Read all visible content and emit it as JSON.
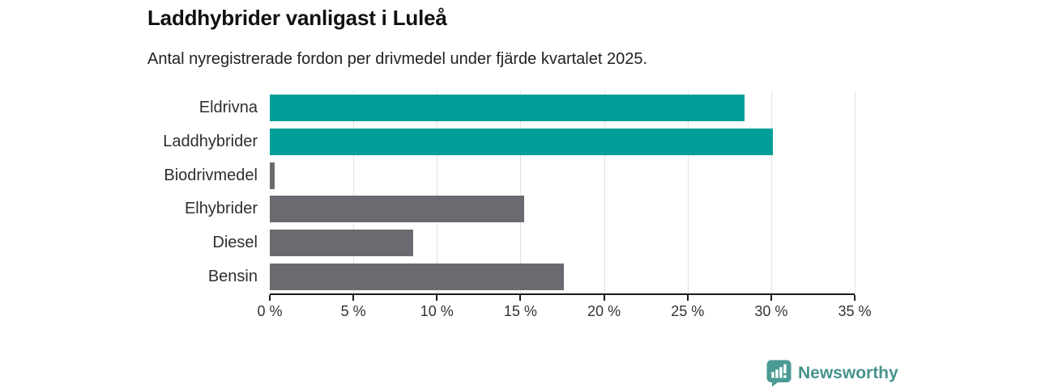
{
  "header": {
    "title": "Laddhybrider vanligast i Luleå",
    "subtitle": "Antal nyregistrerade fordon per drivmedel under fjärde kvartalet 2025."
  },
  "chart_data": {
    "type": "bar",
    "orientation": "horizontal",
    "title": "Laddhybrider vanligast i Luleå",
    "subtitle": "Antal nyregistrerade fordon per drivmedel under fjärde kvartalet 2025.",
    "categories": [
      "Eldrivna",
      "Laddhybrider",
      "Biodrivmedel",
      "Elhybrider",
      "Diesel",
      "Bensin"
    ],
    "values": [
      28.4,
      30.1,
      0.3,
      15.2,
      8.6,
      17.6
    ],
    "unit": "%",
    "colors": [
      "#00A099",
      "#00A099",
      "#6B6A70",
      "#6B6A70",
      "#6B6A70",
      "#6B6A70"
    ],
    "highlight_color": "#00A099",
    "default_color": "#6B6A70",
    "xlim": [
      0,
      35
    ],
    "xticks": [
      0,
      5,
      10,
      15,
      20,
      25,
      30,
      35
    ],
    "xtick_labels": [
      "0 %",
      "5 %",
      "10 %",
      "15 %",
      "20 %",
      "25 %",
      "30 %",
      "35 %"
    ],
    "grid": "vertical-gridlines-on",
    "legend": "none",
    "xlabel": "",
    "ylabel": ""
  },
  "footer": {
    "brand": "Newsworthy",
    "brand_color": "#46938D",
    "logo_icon": "bar-chart-speech-bubble-icon"
  }
}
